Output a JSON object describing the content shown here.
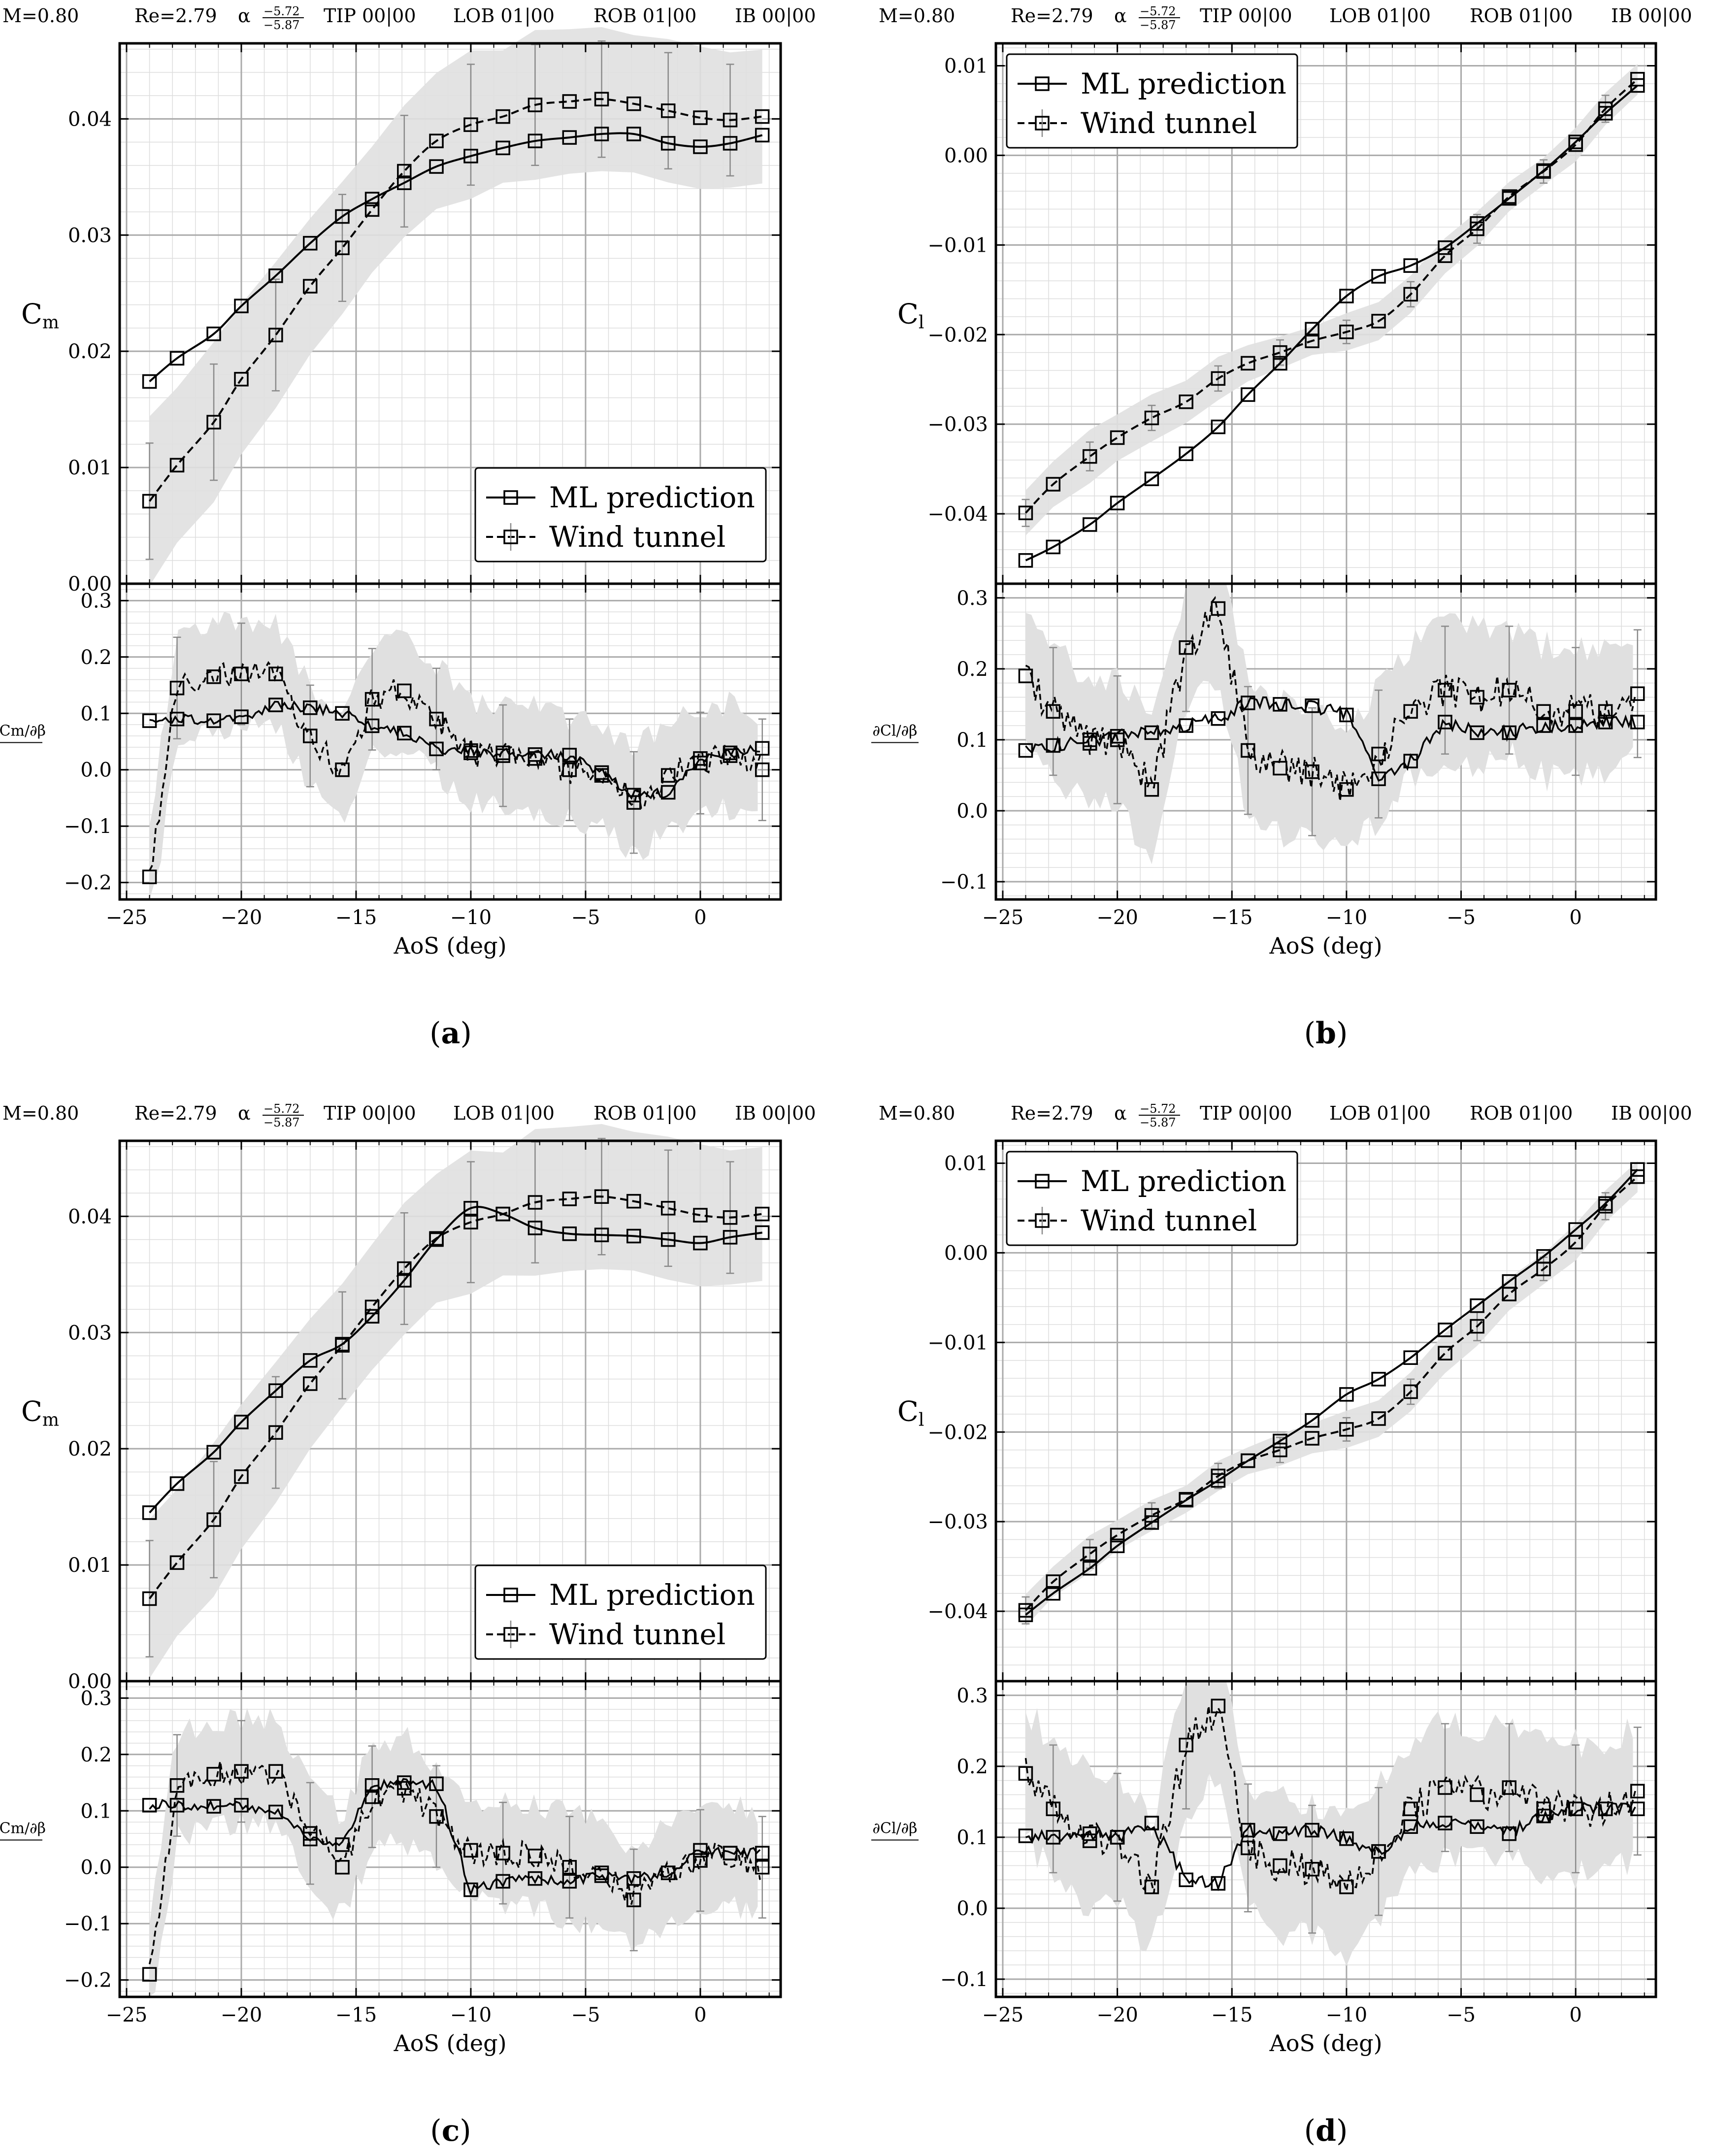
{
  "figure": {
    "header": {
      "mach": "M=0.80",
      "reynolds": "Re=2.79",
      "alpha_symbol": "α",
      "alpha_top": "−5.72",
      "alpha_bottom": "−5.87",
      "tip": "TIP 00|00",
      "lob": "LOB 01|00",
      "rob": "ROB 01|00",
      "ib": "IB 00|00"
    },
    "legend": {
      "ml": "ML prediction",
      "wt": "Wind tunnel"
    },
    "xlabel": "AoS (deg)",
    "colors": {
      "line": "#000000",
      "band": "#e0e0e0",
      "grid_major": "#aaaaaa",
      "grid_minor": "#dddddd",
      "errorbar": "#8a8a8a"
    }
  },
  "chart_data": [
    {
      "id": "a",
      "panel_label": "a",
      "type": "line",
      "top": {
        "ylabel": "C",
        "ylabel_sub": "m",
        "ylim": [
          0,
          0.0465
        ],
        "yticks": [
          0,
          0.01,
          0.02,
          0.03,
          0.04
        ],
        "ytick_labels": [
          "0.00",
          "0.01",
          "0.02",
          "0.03",
          "0.04"
        ],
        "legend_position": "bottom-right",
        "ml": {
          "x": [
            -24,
            -22.8,
            -21.2,
            -20,
            -18.5,
            -17,
            -15.6,
            -14.3,
            -12.9,
            -11.5,
            -10,
            -8.6,
            -7.2,
            -5.7,
            -4.3,
            -2.9,
            -1.4,
            0,
            1.3,
            2.7
          ],
          "y": [
            0.0174,
            0.0194,
            0.0215,
            0.0239,
            0.0265,
            0.0293,
            0.0316,
            0.0331,
            0.0345,
            0.0359,
            0.0368,
            0.0375,
            0.0381,
            0.0384,
            0.0387,
            0.0387,
            0.0379,
            0.0376,
            0.0379,
            0.0386
          ]
        },
        "wt": {
          "x": [
            -24,
            -22.8,
            -21.2,
            -20,
            -18.5,
            -17,
            -15.6,
            -14.3,
            -12.9,
            -11.5,
            -10,
            -8.6,
            -7.2,
            -5.7,
            -4.3,
            -2.9,
            -1.4,
            0,
            1.3,
            2.7
          ],
          "y": [
            0.0071,
            0.0102,
            0.0139,
            0.0176,
            0.0214,
            0.0256,
            0.0289,
            0.0322,
            0.0355,
            0.0381,
            0.0395,
            0.0402,
            0.0412,
            0.0415,
            0.0417,
            0.0413,
            0.0407,
            0.0401,
            0.0399,
            0.0402
          ],
          "err": [
            0.005,
            0.0046,
            0.005,
            0.0048,
            0.0048,
            0.0046,
            0.0046,
            0.0046,
            0.0048,
            0.0048,
            0.0052,
            0.0046,
            0.0052,
            0.005,
            0.005,
            0.0048,
            0.005,
            0.005,
            0.0048,
            0.0048
          ]
        }
      },
      "bottom": {
        "ylabel": "∂Cm/∂β",
        "ylim": [
          -0.23,
          0.33
        ],
        "yticks": [
          -0.2,
          -0.1,
          0,
          0.1,
          0.2,
          0.3
        ],
        "ytick_labels": [
          "−0.2",
          "−0.1",
          "0.0",
          "0.1",
          "0.2",
          "0.3"
        ],
        "ml_markers": {
          "x": [
            -24,
            -22.8,
            -21.2,
            -20,
            -18.5,
            -17,
            -15.6,
            -14.3,
            -12.9,
            -11.5,
            -10,
            -8.6,
            -7.2,
            -5.7,
            -4.3,
            -2.9,
            -1.4,
            0,
            1.3,
            2.7
          ],
          "y": [
            0.087,
            0.09,
            0.087,
            0.094,
            0.115,
            0.11,
            0.1,
            0.078,
            0.065,
            0.037,
            0.034,
            0.03,
            0.027,
            0.026,
            -0.005,
            -0.045,
            -0.04,
            0.02,
            0.03,
            0.038
          ]
        },
        "wt_markers": {
          "x": [
            -24,
            -22.8,
            -21.2,
            -20,
            -18.5,
            -17,
            -15.6,
            -14.3,
            -12.9,
            -11.5,
            -10,
            -8.6,
            -7.2,
            -5.7,
            -4.3,
            -2.9,
            -1.4,
            0,
            1.3,
            2.7
          ],
          "y": [
            -0.19,
            0.145,
            0.165,
            0.17,
            0.17,
            0.06,
            0.0,
            0.125,
            0.14,
            0.09,
            0.03,
            0.025,
            0.02,
            0.0,
            -0.01,
            -0.058,
            -0.01,
            0.012,
            0.025,
            0.0
          ]
        }
      }
    },
    {
      "id": "b",
      "panel_label": "b",
      "type": "line",
      "top": {
        "ylabel": "C",
        "ylabel_sub": "l",
        "ylim": [
          -0.0478,
          0.0125
        ],
        "yticks": [
          -0.04,
          -0.03,
          -0.02,
          -0.01,
          0,
          0.01
        ],
        "ytick_labels": [
          "−0.04",
          "−0.03",
          "−0.02",
          "−0.01",
          "0.00",
          "0.01"
        ],
        "legend_position": "top-left",
        "ml": {
          "x": [
            -24,
            -22.8,
            -21.2,
            -20,
            -18.5,
            -17,
            -15.6,
            -14.3,
            -12.9,
            -11.5,
            -10,
            -8.6,
            -7.2,
            -5.7,
            -4.3,
            -2.9,
            -1.4,
            0,
            1.3,
            2.7
          ],
          "y": [
            -0.0452,
            -0.0437,
            -0.0412,
            -0.0388,
            -0.0361,
            -0.0333,
            -0.0303,
            -0.0267,
            -0.0232,
            -0.0194,
            -0.0157,
            -0.0135,
            -0.0123,
            -0.0103,
            -0.0076,
            -0.0048,
            -0.0017,
            0.0015,
            0.0047,
            0.0078
          ]
        },
        "wt": {
          "x": [
            -24,
            -22.8,
            -21.2,
            -20,
            -18.5,
            -17,
            -15.6,
            -14.3,
            -12.9,
            -11.5,
            -10,
            -8.6,
            -7.2,
            -5.7,
            -4.3,
            -2.9,
            -1.4,
            0,
            1.3,
            2.7
          ],
          "y": [
            -0.0399,
            -0.0367,
            -0.0336,
            -0.0315,
            -0.0293,
            -0.0275,
            -0.0249,
            -0.0232,
            -0.022,
            -0.0207,
            -0.0197,
            -0.0185,
            -0.0155,
            -0.0112,
            -0.0082,
            -0.0046,
            -0.0018,
            0.0012,
            0.0052,
            0.0085
          ],
          "err": [
            0.0015,
            0.0013,
            0.0016,
            0.0013,
            0.0014,
            0.0013,
            0.0014,
            0.0013,
            0.0014,
            0.0012,
            0.0013,
            0.0012,
            0.0014,
            0.0016,
            0.0016,
            0.0014,
            0.0013,
            0.0016,
            0.0015,
            0.0014
          ]
        }
      },
      "bottom": {
        "ylabel": "∂Cl/∂β",
        "ylim": [
          -0.125,
          0.32
        ],
        "yticks": [
          -0.1,
          0,
          0.1,
          0.2,
          0.3
        ],
        "ytick_labels": [
          "−0.1",
          "0.0",
          "0.1",
          "0.2",
          "0.3"
        ],
        "ml_markers": {
          "x": [
            -24,
            -22.8,
            -21.2,
            -20,
            -18.5,
            -17,
            -15.6,
            -14.3,
            -12.9,
            -11.5,
            -10,
            -8.6,
            -7.2,
            -5.7,
            -4.3,
            -2.9,
            -1.4,
            0,
            1.3,
            2.7
          ],
          "y": [
            0.085,
            0.092,
            0.1,
            0.105,
            0.11,
            0.12,
            0.13,
            0.152,
            0.15,
            0.148,
            0.135,
            0.045,
            0.07,
            0.125,
            0.11,
            0.11,
            0.12,
            0.12,
            0.125,
            0.125
          ]
        },
        "wt_markers": {
          "x": [
            -24,
            -22.8,
            -21.2,
            -20,
            -18.5,
            -17,
            -15.6,
            -14.3,
            -12.9,
            -11.5,
            -10,
            -8.6,
            -7.2,
            -5.7,
            -4.3,
            -2.9,
            -1.4,
            0,
            1.3,
            2.7
          ],
          "y": [
            0.19,
            0.14,
            0.095,
            0.1,
            0.03,
            0.23,
            0.285,
            0.085,
            0.06,
            0.055,
            0.03,
            0.08,
            0.14,
            0.17,
            0.16,
            0.17,
            0.14,
            0.14,
            0.14,
            0.165
          ]
        }
      }
    },
    {
      "id": "c",
      "panel_label": "c",
      "type": "line",
      "top": {
        "ylabel": "C",
        "ylabel_sub": "m",
        "ylim": [
          0,
          0.0465
        ],
        "yticks": [
          0,
          0.01,
          0.02,
          0.03,
          0.04
        ],
        "ytick_labels": [
          "0.00",
          "0.01",
          "0.02",
          "0.03",
          "0.04"
        ],
        "legend_position": "bottom-right",
        "ml": {
          "x": [
            -24,
            -22.8,
            -21.2,
            -20,
            -18.5,
            -17,
            -15.6,
            -14.3,
            -12.9,
            -11.5,
            -10,
            -8.6,
            -7.2,
            -5.7,
            -4.3,
            -2.9,
            -1.4,
            0,
            1.3,
            2.7
          ],
          "y": [
            0.0145,
            0.017,
            0.0197,
            0.0223,
            0.025,
            0.0276,
            0.029,
            0.0314,
            0.0345,
            0.038,
            0.0407,
            0.0402,
            0.039,
            0.0385,
            0.0384,
            0.0383,
            0.038,
            0.0377,
            0.0382,
            0.0386
          ]
        },
        "wt": {
          "x": [
            -24,
            -22.8,
            -21.2,
            -20,
            -18.5,
            -17,
            -15.6,
            -14.3,
            -12.9,
            -11.5,
            -10,
            -8.6,
            -7.2,
            -5.7,
            -4.3,
            -2.9,
            -1.4,
            0,
            1.3,
            2.7
          ],
          "y": [
            0.0071,
            0.0102,
            0.0139,
            0.0176,
            0.0214,
            0.0256,
            0.0289,
            0.0322,
            0.0355,
            0.0381,
            0.0395,
            0.0402,
            0.0412,
            0.0415,
            0.0417,
            0.0413,
            0.0407,
            0.0401,
            0.0399,
            0.0402
          ],
          "err": [
            0.005,
            0.0046,
            0.005,
            0.0048,
            0.0048,
            0.0046,
            0.0046,
            0.0046,
            0.0048,
            0.0048,
            0.0052,
            0.0046,
            0.0052,
            0.005,
            0.005,
            0.0048,
            0.005,
            0.005,
            0.0048,
            0.0048
          ]
        }
      },
      "bottom": {
        "ylabel": "∂Cm/∂β",
        "ylim": [
          -0.23,
          0.33
        ],
        "yticks": [
          -0.2,
          -0.1,
          0,
          0.1,
          0.2,
          0.3
        ],
        "ytick_labels": [
          "−0.2",
          "−0.1",
          "0.0",
          "0.1",
          "0.2",
          "0.3"
        ],
        "ml_markers": {
          "x": [
            -24,
            -22.8,
            -21.2,
            -20,
            -18.5,
            -17,
            -15.6,
            -14.3,
            -12.9,
            -11.5,
            -10,
            -8.6,
            -7.2,
            -5.7,
            -4.3,
            -2.9,
            -1.4,
            0,
            1.3,
            2.7
          ],
          "y": [
            0.11,
            0.11,
            0.108,
            0.11,
            0.098,
            0.05,
            0.04,
            0.145,
            0.15,
            0.148,
            -0.04,
            -0.025,
            -0.02,
            -0.025,
            -0.015,
            -0.02,
            -0.01,
            0.03,
            0.025,
            0.025
          ]
        },
        "wt_markers": {
          "x": [
            -24,
            -22.8,
            -21.2,
            -20,
            -18.5,
            -17,
            -15.6,
            -14.3,
            -12.9,
            -11.5,
            -10,
            -8.6,
            -7.2,
            -5.7,
            -4.3,
            -2.9,
            -1.4,
            0,
            1.3,
            2.7
          ],
          "y": [
            -0.19,
            0.145,
            0.165,
            0.17,
            0.17,
            0.06,
            0.0,
            0.125,
            0.14,
            0.09,
            0.03,
            0.025,
            0.02,
            0.0,
            -0.01,
            -0.058,
            -0.01,
            0.012,
            0.025,
            0.0
          ]
        }
      }
    },
    {
      "id": "d",
      "panel_label": "d",
      "type": "line",
      "top": {
        "ylabel": "C",
        "ylabel_sub": "l",
        "ylim": [
          -0.0478,
          0.0125
        ],
        "yticks": [
          -0.04,
          -0.03,
          -0.02,
          -0.01,
          0,
          0.01
        ],
        "ytick_labels": [
          "−0.04",
          "−0.03",
          "−0.02",
          "−0.01",
          "0.00",
          "0.01"
        ],
        "legend_position": "top-left",
        "ml": {
          "x": [
            -24,
            -22.8,
            -21.2,
            -20,
            -18.5,
            -17,
            -15.6,
            -14.3,
            -12.9,
            -11.5,
            -10,
            -8.6,
            -7.2,
            -5.7,
            -4.3,
            -2.9,
            -1.4,
            0,
            1.3,
            2.7
          ],
          "y": [
            -0.0404,
            -0.038,
            -0.0352,
            -0.0327,
            -0.0301,
            -0.0276,
            -0.0254,
            -0.0232,
            -0.021,
            -0.0187,
            -0.0158,
            -0.0141,
            -0.0117,
            -0.0086,
            -0.0059,
            -0.0032,
            -0.0004,
            0.0026,
            0.0055,
            0.0093
          ]
        },
        "wt": {
          "x": [
            -24,
            -22.8,
            -21.2,
            -20,
            -18.5,
            -17,
            -15.6,
            -14.3,
            -12.9,
            -11.5,
            -10,
            -8.6,
            -7.2,
            -5.7,
            -4.3,
            -2.9,
            -1.4,
            0,
            1.3,
            2.7
          ],
          "y": [
            -0.0399,
            -0.0367,
            -0.0336,
            -0.0315,
            -0.0293,
            -0.0275,
            -0.0249,
            -0.0232,
            -0.022,
            -0.0207,
            -0.0197,
            -0.0185,
            -0.0155,
            -0.0112,
            -0.0082,
            -0.0046,
            -0.0018,
            0.0012,
            0.0052,
            0.0085
          ],
          "err": [
            0.0015,
            0.0013,
            0.0016,
            0.0013,
            0.0014,
            0.0013,
            0.0014,
            0.0013,
            0.0014,
            0.0012,
            0.0013,
            0.0012,
            0.0014,
            0.0016,
            0.0016,
            0.0014,
            0.0013,
            0.0016,
            0.0015,
            0.0014
          ]
        }
      },
      "bottom": {
        "ylabel": "∂Cl/∂β",
        "ylim": [
          -0.125,
          0.32
        ],
        "yticks": [
          -0.1,
          0,
          0.1,
          0.2,
          0.3
        ],
        "ytick_labels": [
          "−0.1",
          "0.0",
          "0.1",
          "0.2",
          "0.3"
        ],
        "ml_markers": {
          "x": [
            -24,
            -22.8,
            -21.2,
            -20,
            -18.5,
            -17,
            -15.6,
            -14.3,
            -12.9,
            -11.5,
            -10,
            -8.6,
            -7.2,
            -5.7,
            -4.3,
            -2.9,
            -1.4,
            0,
            1.3,
            2.7
          ],
          "y": [
            0.102,
            0.1,
            0.105,
            0.1,
            0.12,
            0.04,
            0.035,
            0.11,
            0.105,
            0.11,
            0.098,
            0.08,
            0.115,
            0.12,
            0.115,
            0.105,
            0.13,
            0.14,
            0.14,
            0.14
          ]
        },
        "wt_markers": {
          "x": [
            -24,
            -22.8,
            -21.2,
            -20,
            -18.5,
            -17,
            -15.6,
            -14.3,
            -12.9,
            -11.5,
            -10,
            -8.6,
            -7.2,
            -5.7,
            -4.3,
            -2.9,
            -1.4,
            0,
            1.3,
            2.7
          ],
          "y": [
            0.19,
            0.14,
            0.095,
            0.1,
            0.03,
            0.23,
            0.285,
            0.085,
            0.06,
            0.055,
            0.03,
            0.08,
            0.14,
            0.17,
            0.16,
            0.17,
            0.14,
            0.14,
            0.14,
            0.165
          ]
        }
      }
    }
  ]
}
